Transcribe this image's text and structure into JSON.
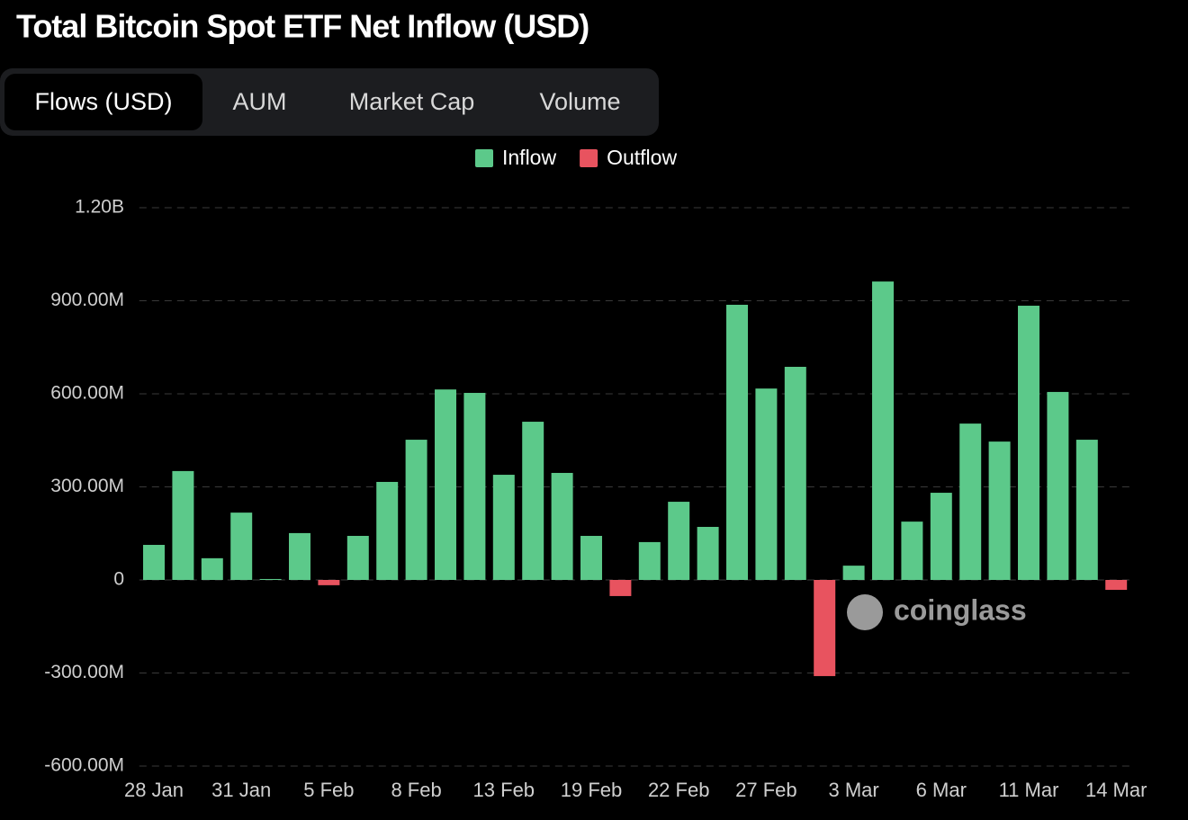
{
  "chart_data": {
    "type": "bar",
    "title": "Total Bitcoin Spot ETF Net Inflow (USD)",
    "tabs": [
      "Flows (USD)",
      "AUM",
      "Market Cap",
      "Volume"
    ],
    "active_tab": 0,
    "watermark": "coinglass",
    "categories": [
      "28 Jan",
      null,
      null,
      "31 Jan",
      null,
      null,
      "5 Feb",
      null,
      null,
      "8 Feb",
      null,
      null,
      "13 Feb",
      null,
      null,
      "19 Feb",
      null,
      null,
      "22 Feb",
      null,
      null,
      "27 Feb",
      null,
      null,
      "3 Mar",
      null,
      null,
      "6 Mar",
      null,
      null,
      "11 Mar",
      null,
      null,
      "14 Mar"
    ],
    "series": [
      {
        "name": "Inflow",
        "color": "#5cc98a",
        "values": [
          113000000,
          351000000,
          70000000,
          217000000,
          3000000,
          151000000,
          null,
          142000000,
          316000000,
          452000000,
          614000000,
          603000000,
          339000000,
          510000000,
          345000000,
          142000000,
          null,
          122000000,
          252000000,
          171000000,
          887000000,
          617000000,
          687000000,
          null,
          46000000,
          962000000,
          188000000,
          281000000,
          504000000,
          446000000,
          884000000,
          606000000,
          452000000,
          null
        ]
      },
      {
        "name": "Outflow",
        "color": "#e8535f",
        "values": [
          null,
          null,
          null,
          null,
          null,
          null,
          -17000000,
          null,
          null,
          null,
          null,
          null,
          null,
          null,
          null,
          null,
          -52000000,
          null,
          null,
          null,
          null,
          null,
          null,
          -310000000,
          null,
          null,
          null,
          null,
          null,
          null,
          null,
          null,
          null,
          -32000000
        ]
      }
    ],
    "ylim": [
      -600000000,
      1200000000
    ],
    "yticks": [
      {
        "value": -600000000,
        "label": "-600.00M"
      },
      {
        "value": -300000000,
        "label": "-300.00M"
      },
      0,
      {
        "value": 300000000,
        "label": "300.00M"
      },
      {
        "value": 600000000,
        "label": "600.00M"
      },
      {
        "value": 900000000,
        "label": "900.00M"
      },
      {
        "value": 1200000000,
        "label": "1.20B"
      }
    ],
    "grid": true,
    "legend": "top"
  }
}
